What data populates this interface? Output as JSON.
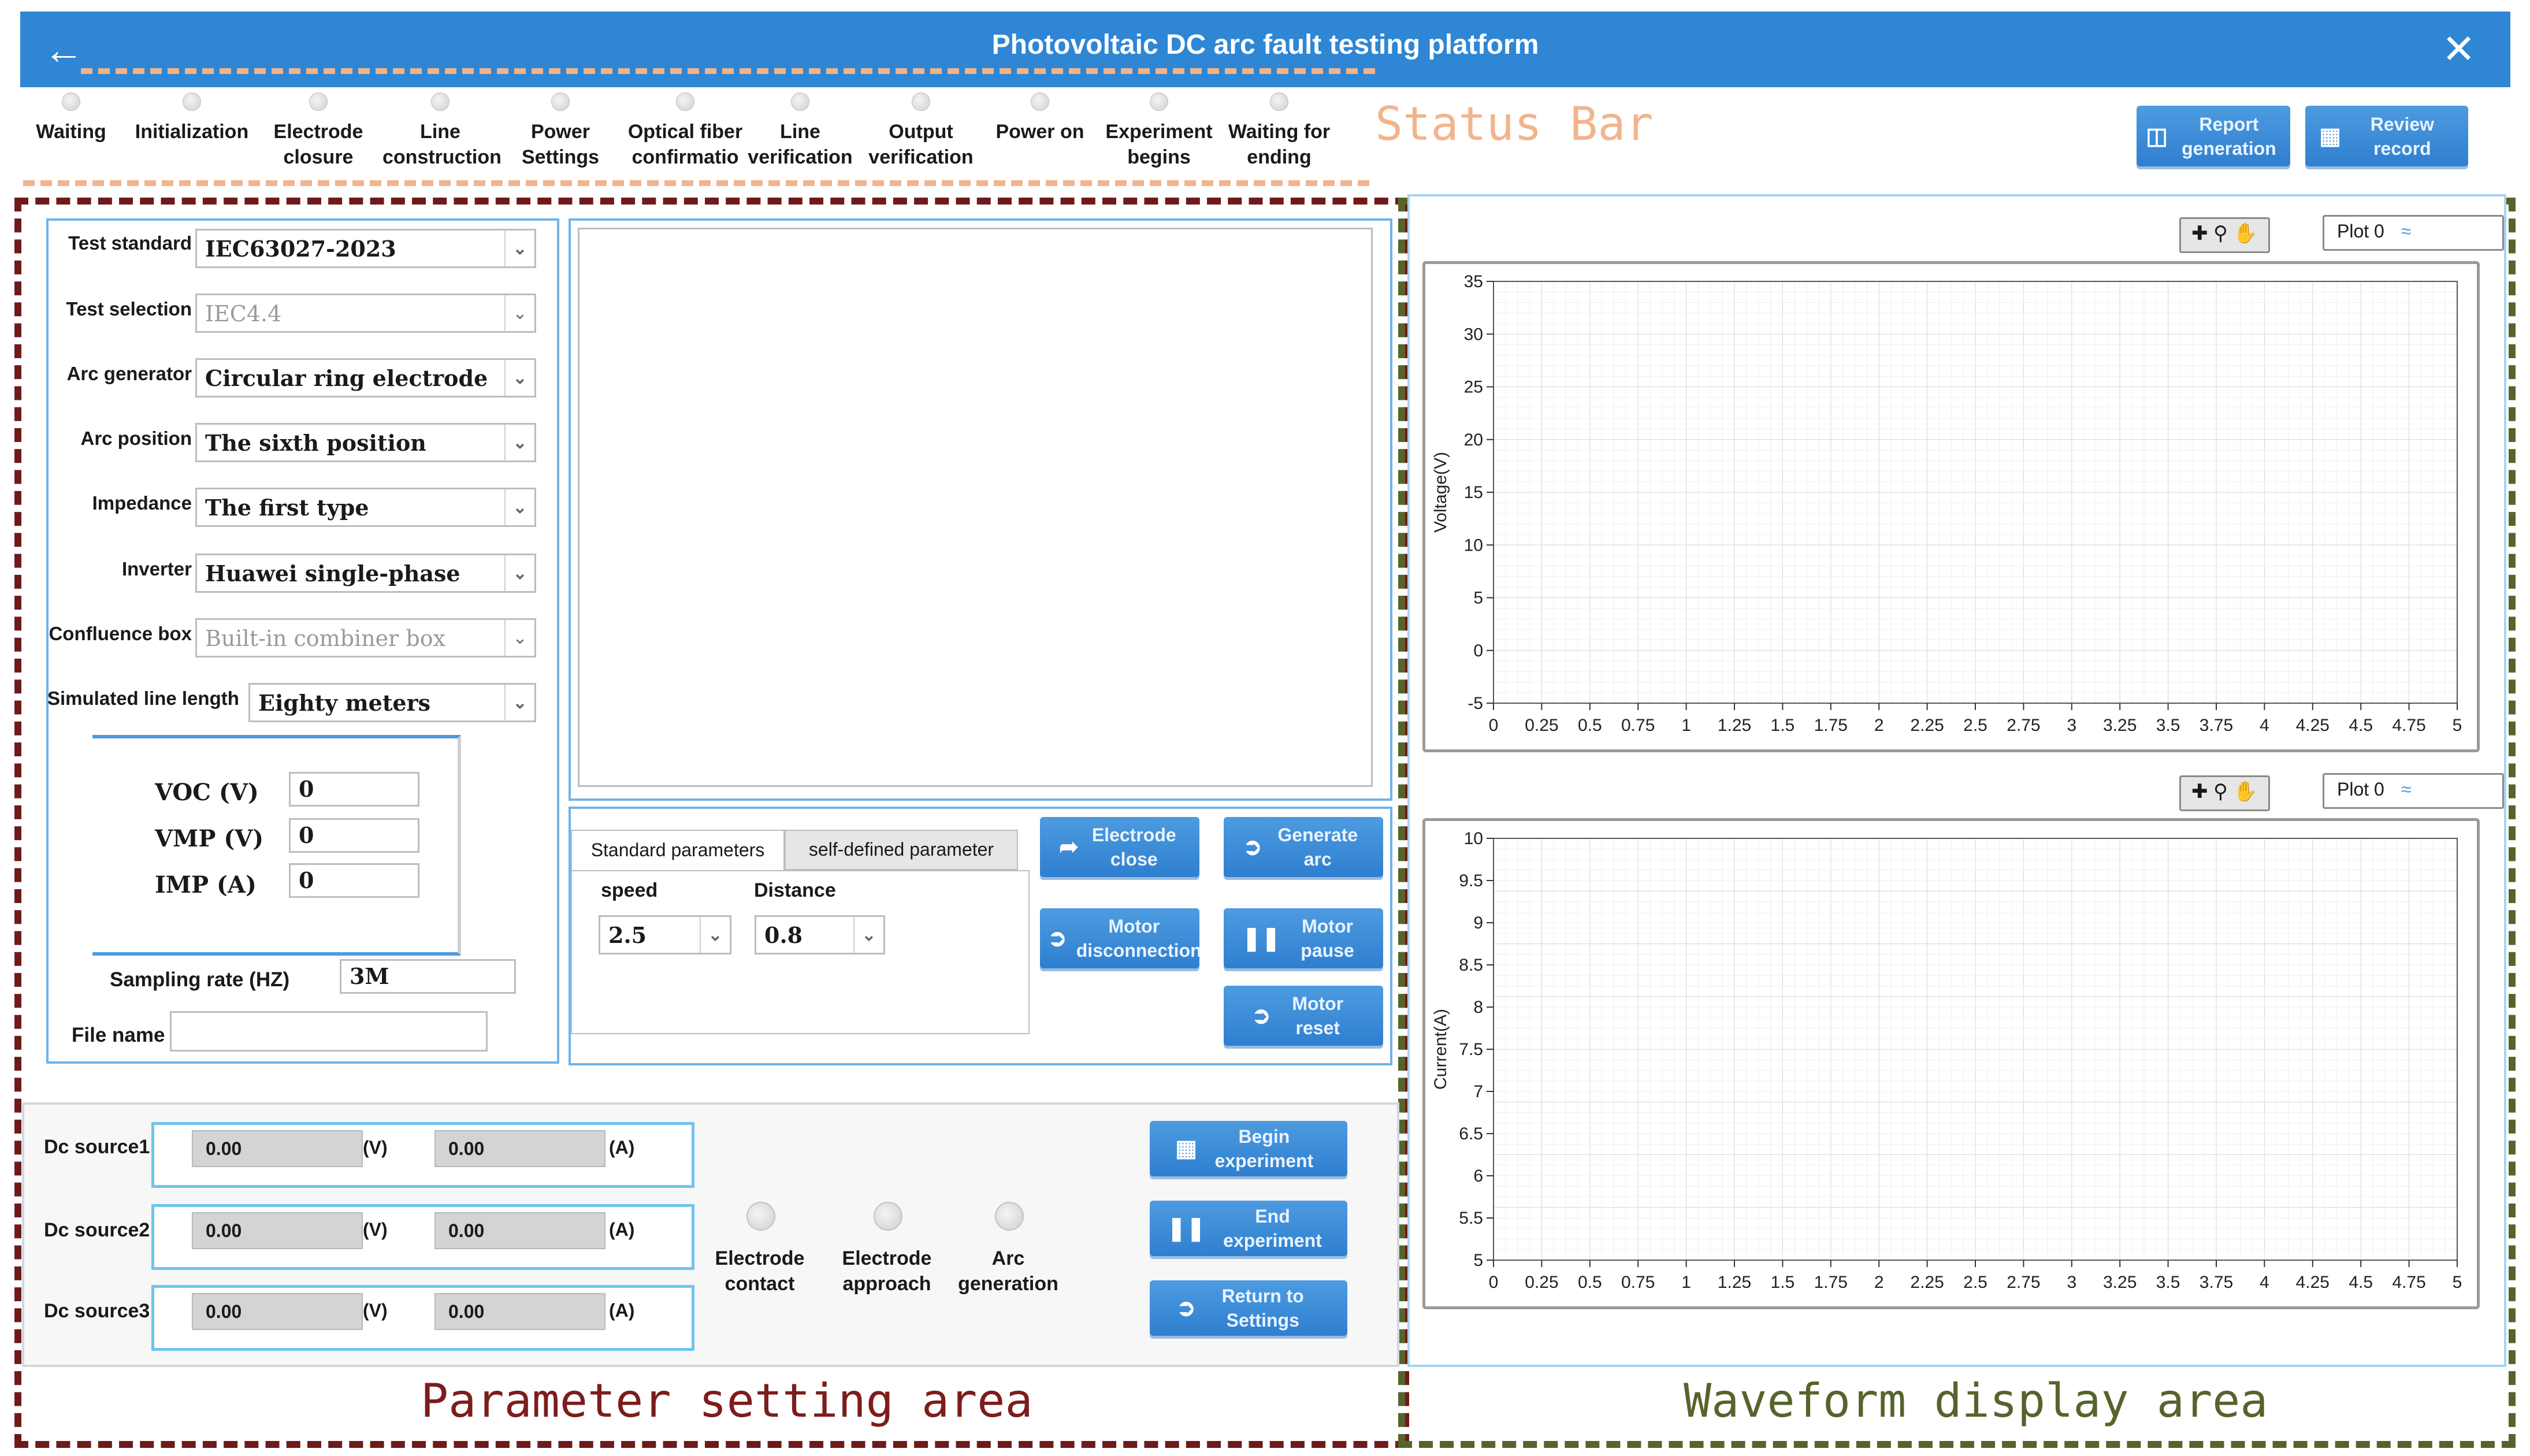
{
  "window": {
    "title": "Photovoltaic DC arc fault testing platform"
  },
  "status_steps": [
    {
      "label": "Waiting"
    },
    {
      "label": "Initialization"
    },
    {
      "label": "Electrode closure"
    },
    {
      "label": "Line construction"
    },
    {
      "label": "Power Settings"
    },
    {
      "label": "Optical fiber confirmatio"
    },
    {
      "label": "Line verification"
    },
    {
      "label": "Output verification"
    },
    {
      "label": "Power on"
    },
    {
      "label": "Experiment begins"
    },
    {
      "label": "Waiting for ending"
    }
  ],
  "annotations": {
    "status_bar": "Status Bar",
    "parameter_area": "Parameter setting area",
    "waveform_area": "Waveform display area"
  },
  "top_buttons": {
    "report": "Report generation",
    "review": "Review record"
  },
  "settings": [
    {
      "label": "Test standard",
      "value": "IEC63027-2023",
      "disabled": false
    },
    {
      "label": "Test selection",
      "value": "IEC4.4",
      "disabled": true
    },
    {
      "label": "Arc generator",
      "value": "Circular ring electrode",
      "disabled": false
    },
    {
      "label": "Arc position",
      "value": "The sixth position",
      "disabled": false
    },
    {
      "label": "Impedance",
      "value": "The first type",
      "disabled": false
    },
    {
      "label": "Inverter",
      "value": "Huawei single-phase",
      "disabled": false
    },
    {
      "label": "Confluence box",
      "value": "Built-in combiner box",
      "disabled": true
    },
    {
      "label": "Simulated line length",
      "value": "Eighty meters",
      "disabled": false
    }
  ],
  "iv": [
    {
      "label": "VOC (V)",
      "value": "0"
    },
    {
      "label": "VMP (V)",
      "value": "0"
    },
    {
      "label": "IMP (A)",
      "value": "0"
    }
  ],
  "sampling": {
    "label": "Sampling rate (HZ)",
    "value": "3M"
  },
  "file": {
    "label": "File name",
    "value": ""
  },
  "tabs": [
    "Standard parameters",
    "self-defined parameter"
  ],
  "motion": {
    "speed_label": "speed",
    "speed_value": "2.5",
    "distance_label": "Distance",
    "distance_value": "0.8"
  },
  "control_buttons": {
    "electrode_close": "Electrode close",
    "generate_arc": "Generate arc",
    "motor_disconnection": "Motor disconnection",
    "motor_pause": "Motor pause",
    "motor_reset": "Motor reset"
  },
  "sources": [
    {
      "label": "Dc source1",
      "voltage": "0.00",
      "current": "0.00"
    },
    {
      "label": "Dc source2",
      "voltage": "0.00",
      "current": "0.00"
    },
    {
      "label": "Dc source3",
      "voltage": "0.00",
      "current": "0.00"
    }
  ],
  "units": {
    "v": "(V)",
    "a": "(A)"
  },
  "indicators": [
    "Electrode contact",
    "Electrode approach",
    "Arc generation"
  ],
  "experiment_buttons": {
    "begin": "Begin experiment",
    "end": "End experiment",
    "return": "Return to Settings"
  },
  "graph_legend": "Plot 0",
  "chart_data": [
    {
      "type": "line",
      "ylabel": "Voltage(V)",
      "xlim": [
        0,
        5
      ],
      "ylim": [
        -5,
        35
      ],
      "x_ticks": [
        "0",
        "0.25",
        "0.5",
        "0.75",
        "1",
        "1.25",
        "1.5",
        "1.75",
        "2",
        "2.25",
        "2.5",
        "2.75",
        "3",
        "3.25",
        "3.5",
        "3.75",
        "4",
        "4.25",
        "4.5",
        "4.75",
        "5"
      ],
      "y_ticks": [
        "-5",
        "0",
        "5",
        "10",
        "15",
        "20",
        "25",
        "30",
        "35"
      ],
      "series": [
        {
          "name": "Plot 0",
          "values": []
        }
      ],
      "grid": true
    },
    {
      "type": "line",
      "ylabel": "Current(A)",
      "xlim": [
        0,
        5
      ],
      "ylim": [
        5,
        10
      ],
      "x_ticks": [
        "0",
        "0.25",
        "0.5",
        "0.75",
        "1",
        "1.25",
        "1.5",
        "1.75",
        "2",
        "2.25",
        "2.5",
        "2.75",
        "3",
        "3.25",
        "3.5",
        "3.75",
        "4",
        "4.25",
        "4.5",
        "4.75",
        "5"
      ],
      "y_ticks": [
        "5",
        "5.5",
        "6",
        "6.5",
        "7",
        "7.5",
        "8",
        "8.5",
        "9",
        "9.5",
        "10"
      ],
      "series": [
        {
          "name": "Plot 0",
          "values": []
        }
      ],
      "grid": true
    }
  ]
}
